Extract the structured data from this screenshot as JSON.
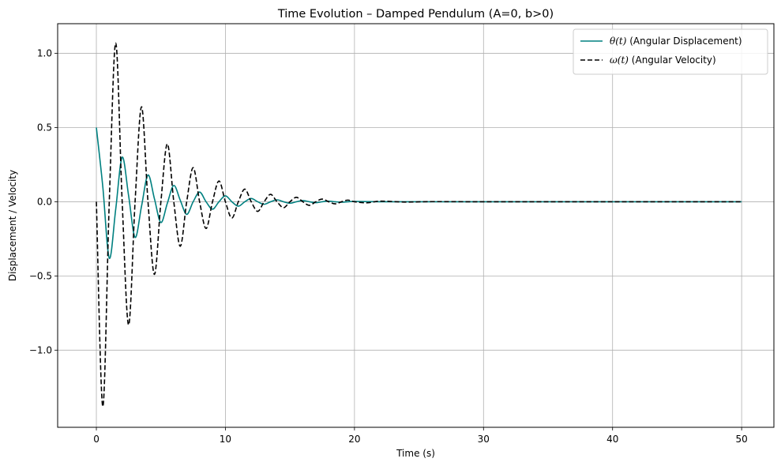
{
  "chart_data": {
    "type": "line",
    "title": "Time Evolution – Damped Pendulum (A=0, b>0)",
    "xlabel": "Time (s)",
    "ylabel": "Displacement / Velocity",
    "xlim": [
      -3,
      52.5
    ],
    "ylim": [
      -1.52,
      1.2
    ],
    "xticks": [
      0,
      10,
      20,
      30,
      40,
      50
    ],
    "xtick_labels": [
      "0",
      "10",
      "20",
      "30",
      "40",
      "50"
    ],
    "yticks": [
      -1.0,
      -0.5,
      0.0,
      0.5,
      1.0
    ],
    "ytick_labels": [
      "−1.0",
      "−0.5",
      "0.0",
      "0.5",
      "1.0"
    ],
    "grid": true,
    "legend_position": "top-right",
    "legend": [
      {
        "math": "θ(t)",
        "text": " (Angular Displacement)"
      },
      {
        "math": "ω(t)",
        "text": " (Angular Velocity)"
      }
    ],
    "series": [
      {
        "name": "θ(t) (Angular Displacement)",
        "color": "#008080",
        "style": "solid",
        "x": [
          0,
          0.5,
          1.0,
          1.5,
          2.0,
          2.5,
          3.0,
          3.5,
          4.0,
          4.5,
          5.0,
          5.5,
          6.0,
          6.5,
          7.0,
          7.5,
          8.0,
          8.5,
          9.0,
          9.5,
          10.0,
          10.5,
          11.0,
          11.5,
          12.0,
          12.5,
          13.0,
          13.5,
          14.0,
          14.5,
          15.0,
          15.5,
          16.0,
          16.5,
          17.0,
          17.5,
          18.0,
          18.5,
          19.0,
          19.5,
          20.0,
          22.0,
          25.0,
          30.0,
          40.0,
          50.0
        ],
        "y": [
          0.5,
          0.1,
          -0.38,
          -0.05,
          0.3,
          0.04,
          -0.24,
          -0.03,
          0.18,
          0.02,
          -0.14,
          -0.01,
          0.11,
          0.01,
          -0.085,
          0.0,
          0.065,
          0.0,
          -0.05,
          0.0,
          0.04,
          0.0,
          -0.03,
          0.0,
          0.022,
          0.0,
          -0.017,
          0.0,
          0.013,
          0.0,
          -0.01,
          0.0,
          0.008,
          0.0,
          -0.006,
          0.0,
          0.004,
          0.0,
          -0.003,
          0.0,
          0.002,
          0.0,
          0.0,
          0.0,
          0.0,
          0.0
        ]
      },
      {
        "name": "ω(t) (Angular Velocity)",
        "color": "#000000",
        "style": "dashed",
        "x": [
          0,
          0.5,
          1.0,
          1.5,
          2.0,
          2.5,
          3.0,
          3.5,
          4.0,
          4.5,
          5.0,
          5.5,
          6.0,
          6.5,
          7.0,
          7.5,
          8.0,
          8.5,
          9.0,
          9.5,
          10.0,
          10.5,
          11.0,
          11.5,
          12.0,
          12.5,
          13.0,
          13.5,
          14.0,
          14.5,
          15.0,
          15.5,
          16.0,
          16.5,
          17.0,
          17.5,
          18.0,
          18.5,
          19.0,
          19.5,
          20.0,
          21.0,
          22.0,
          24.0,
          26.0,
          30.0,
          40.0,
          50.0
        ],
        "y": [
          0.0,
          -1.38,
          0.0,
          1.07,
          0.0,
          -0.83,
          0.0,
          0.64,
          0.0,
          -0.49,
          0.0,
          0.39,
          0.0,
          -0.3,
          0.0,
          0.23,
          0.0,
          -0.18,
          0.0,
          0.14,
          0.0,
          -0.11,
          0.0,
          0.085,
          0.0,
          -0.065,
          0.0,
          0.05,
          0.0,
          -0.04,
          0.0,
          0.03,
          0.0,
          -0.024,
          0.0,
          0.018,
          0.0,
          -0.014,
          0.0,
          0.011,
          0.0,
          -0.007,
          0.004,
          -0.002,
          0.001,
          0.0,
          0.0,
          0.0
        ]
      }
    ]
  }
}
